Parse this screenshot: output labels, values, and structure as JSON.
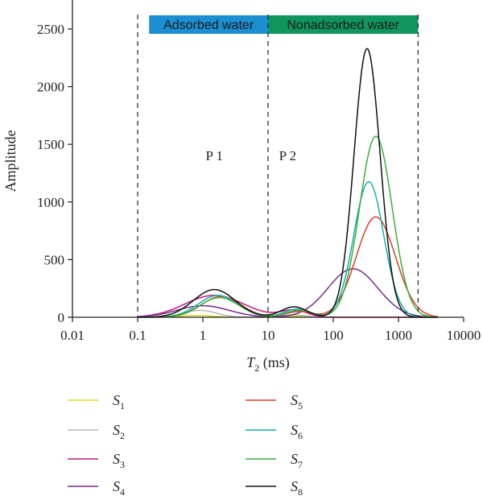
{
  "chart_data": {
    "type": "line",
    "title": "",
    "xlabel": "T2 (ms)",
    "xlabel_main": "T",
    "xlabel_sub": "2",
    "xlabel_unit": " (ms)",
    "ylabel": "Amplitude",
    "xscale": "log",
    "xlim": [
      0.01,
      10000
    ],
    "ylim": [
      0,
      2500
    ],
    "xticks": [
      0.01,
      0.1,
      1,
      10,
      100,
      1000,
      10000
    ],
    "xtick_labels": [
      "0.01",
      "0.1",
      "1",
      "10",
      "100",
      "1000",
      "10000"
    ],
    "yticks": [
      0,
      500,
      1000,
      1500,
      2000,
      2500
    ],
    "ytick_labels": [
      "0",
      "500",
      "1000",
      "1500",
      "2000",
      "2500"
    ],
    "grid": false,
    "legend_placement": "bottom",
    "boundaries": [
      0.1,
      10,
      2000
    ],
    "bands": [
      {
        "label": "Adsorbed water",
        "from": 0.15,
        "to": 10,
        "color": "#1b8fd1"
      },
      {
        "label": "Nonadsorbed water",
        "from": 10,
        "to": 2000,
        "color": "#11955f"
      }
    ],
    "annotations": [
      {
        "text": "P 1",
        "x": 1.5,
        "y": 1360
      },
      {
        "text": "P 2",
        "x": 20,
        "y": 1360
      }
    ],
    "series": [
      {
        "name": "S1",
        "base": "S",
        "sub": "1",
        "color": "#d8d82a",
        "peaks": [
          {
            "x": 0.8,
            "y": 15,
            "w": 0.25
          },
          {
            "x": 30,
            "y": 10,
            "w": 0.2
          }
        ]
      },
      {
        "name": "S2",
        "base": "S",
        "sub": "2",
        "color": "#b8b8b8",
        "peaks": [
          {
            "x": 0.9,
            "y": 60,
            "w": 0.25
          },
          {
            "x": 25,
            "y": 20,
            "w": 0.2
          }
        ]
      },
      {
        "name": "S3",
        "base": "S",
        "sub": "3",
        "color": "#c41a7c",
        "peaks": [
          {
            "x": 1.5,
            "y": 190,
            "w": 0.45
          },
          {
            "x": 25,
            "y": 60,
            "w": 0.2
          }
        ]
      },
      {
        "name": "S4",
        "base": "S",
        "sub": "4",
        "color": "#7b2a8f",
        "peaks": [
          {
            "x": 1.0,
            "y": 100,
            "w": 0.4
          },
          {
            "x": 200,
            "y": 420,
            "w": 0.38
          }
        ]
      },
      {
        "name": "S5",
        "base": "S",
        "sub": "5",
        "color": "#e03c2a",
        "peaks": [
          {
            "x": 1.9,
            "y": 180,
            "w": 0.3
          },
          {
            "x": 30,
            "y": 50,
            "w": 0.2
          },
          {
            "x": 450,
            "y": 870,
            "w": 0.3
          }
        ]
      },
      {
        "name": "S6",
        "base": "S",
        "sub": "6",
        "color": "#14b0b0",
        "peaks": [
          {
            "x": 1.7,
            "y": 190,
            "w": 0.3
          },
          {
            "x": 28,
            "y": 70,
            "w": 0.2
          },
          {
            "x": 350,
            "y": 1175,
            "w": 0.23
          }
        ]
      },
      {
        "name": "S7",
        "base": "S",
        "sub": "7",
        "color": "#3ab03a",
        "peaks": [
          {
            "x": 1.8,
            "y": 170,
            "w": 0.3
          },
          {
            "x": 30,
            "y": 60,
            "w": 0.2
          },
          {
            "x": 450,
            "y": 1570,
            "w": 0.25
          }
        ]
      },
      {
        "name": "S8",
        "base": "S",
        "sub": "8",
        "color": "#111111",
        "peaks": [
          {
            "x": 1.5,
            "y": 240,
            "w": 0.32
          },
          {
            "x": 25,
            "y": 90,
            "w": 0.2
          },
          {
            "x": 330,
            "y": 2330,
            "w": 0.2
          }
        ]
      }
    ]
  }
}
